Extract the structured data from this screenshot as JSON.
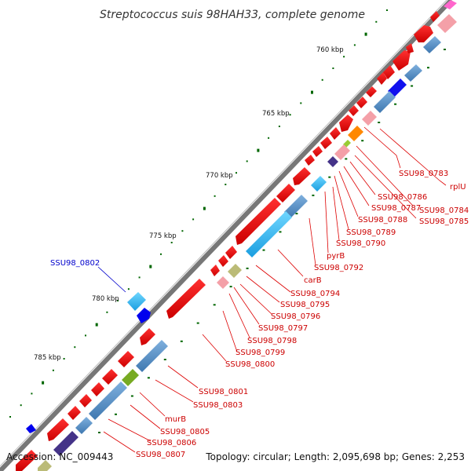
{
  "title": "Streptococcus suis 98HAH33, complete genome",
  "footer": {
    "accession": "Accession: NC_009443",
    "summary": "Topology: circular; Length: 2,095,698 bp; Genes: 2,253"
  },
  "kbp_labels": [
    "760 kbp",
    "765 kbp",
    "770 kbp",
    "775 kbp",
    "780 kbp",
    "785 kbp"
  ],
  "gene_labels": [
    {
      "text": "SSU98_0783",
      "color": "#cc0000"
    },
    {
      "text": "rplU",
      "color": "#cc0000"
    },
    {
      "text": "SSU98_0784",
      "color": "#cc0000"
    },
    {
      "text": "SSU98_0785",
      "color": "#cc0000"
    },
    {
      "text": "SSU98_0786",
      "color": "#cc0000"
    },
    {
      "text": "SSU98_0787",
      "color": "#cc0000"
    },
    {
      "text": "SSU98_0788",
      "color": "#cc0000"
    },
    {
      "text": "SSU98_0789",
      "color": "#cc0000"
    },
    {
      "text": "SSU98_0790",
      "color": "#cc0000"
    },
    {
      "text": "pyrB",
      "color": "#cc0000"
    },
    {
      "text": "SSU98_0792",
      "color": "#cc0000"
    },
    {
      "text": "carB",
      "color": "#cc0000"
    },
    {
      "text": "SSU98_0794",
      "color": "#cc0000"
    },
    {
      "text": "SSU98_0795",
      "color": "#cc0000"
    },
    {
      "text": "SSU98_0796",
      "color": "#cc0000"
    },
    {
      "text": "SSU98_0797",
      "color": "#cc0000"
    },
    {
      "text": "SSU98_0798",
      "color": "#cc0000"
    },
    {
      "text": "SSU98_0799",
      "color": "#cc0000"
    },
    {
      "text": "SSU98_0800",
      "color": "#cc0000"
    },
    {
      "text": "SSU98_0801",
      "color": "#cc0000"
    },
    {
      "text": "SSU98_0803",
      "color": "#cc0000"
    },
    {
      "text": "murB",
      "color": "#cc0000"
    },
    {
      "text": "SSU98_0805",
      "color": "#cc0000"
    },
    {
      "text": "SSU98_0806",
      "color": "#cc0000"
    },
    {
      "text": "SSU98_0807",
      "color": "#cc0000"
    },
    {
      "text": "SSU98_0802",
      "color": "#0000cc"
    }
  ],
  "colors": {
    "backbone": "#777777",
    "forward_cds": "#ee0000",
    "reverse_cds": "#0000ee",
    "tick": "#006600",
    "leader_red": "#dd0000",
    "leader_blue": "#0000cc"
  }
}
